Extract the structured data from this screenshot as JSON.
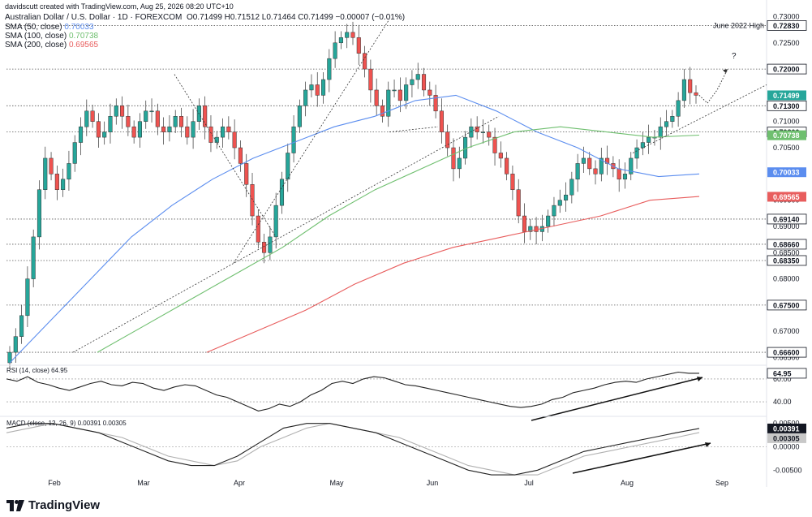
{
  "header": {
    "credit": "davidscutt created with TradingView.com, Aug 25, 2026 08:20 UTC+10",
    "symbol_line": "Australian Dollar / U.S. Dollar · 1D · FOREXCOM",
    "ohlc": "O0.71499 H0.71512 L0.71464 C0.71499 −0.00007 (−0.01%)",
    "sma_labels": [
      {
        "label": "SMA (50, close)",
        "value": "0.70033",
        "color": "#5b8def"
      },
      {
        "label": "SMA (100, close)",
        "value": "0.70738",
        "color": "#6fbf6f"
      },
      {
        "label": "SMA (200, close)",
        "value": "0.69565",
        "color": "#e85d5d"
      }
    ]
  },
  "watermark": "TradingView",
  "price_axis": {
    "ticks": [
      "0.73000",
      "0.72500",
      "0.72000",
      "0.71500",
      "0.71000",
      "0.70500",
      "0.70000",
      "0.69500",
      "0.69000",
      "0.68500",
      "0.68000",
      "0.67500",
      "0.67000",
      "0.66500"
    ],
    "levels": [
      {
        "value": "0.72830",
        "label": "June 2022 High"
      },
      {
        "value": "0.72000",
        "label": ""
      },
      {
        "value": "0.71300",
        "label": ""
      },
      {
        "value": "0.70800",
        "label": ""
      },
      {
        "value": "0.69140",
        "label": ""
      },
      {
        "value": "0.68660",
        "label": ""
      },
      {
        "value": "0.68350",
        "label": ""
      },
      {
        "value": "0.67500",
        "label": ""
      },
      {
        "value": "0.66600",
        "label": ""
      }
    ],
    "badges": [
      {
        "value": "0.71499",
        "color": "#26a69a"
      },
      {
        "value": "0.70738",
        "color": "#6fbf6f"
      },
      {
        "value": "0.70033",
        "color": "#5b8def"
      },
      {
        "value": "0.69565",
        "color": "#e85d5d"
      }
    ]
  },
  "x_axis": [
    "Feb",
    "Mar",
    "Apr",
    "May",
    "Jun",
    "Jul",
    "Aug",
    "Sep"
  ],
  "annotation_question": "?",
  "rsi": {
    "label": "RSI (14, close)",
    "value": "64.95",
    "ticks": [
      "60.00",
      "40.00"
    ]
  },
  "macd": {
    "label": "MACD (close, 12, 26, 9)",
    "values": [
      "0.00391",
      "0.00305"
    ],
    "ticks": [
      "0.00500",
      "0.00000",
      "-0.00500"
    ],
    "badges": [
      "0.00391",
      "0.00305"
    ]
  },
  "chart_data": {
    "type": "candlestick",
    "title": "Australian Dollar / U.S. Dollar · 1D · FOREXCOM",
    "ylim": [
      0.664,
      0.731
    ],
    "series": [
      {
        "name": "SMA (50, close)",
        "color": "#5b8def",
        "values": [
          0.664,
          0.672,
          0.68,
          0.688,
          0.694,
          0.699,
          0.703,
          0.706,
          0.709,
          0.711,
          0.714,
          0.715,
          0.712,
          0.708,
          0.705,
          0.701,
          0.6995,
          0.7
        ]
      },
      {
        "name": "SMA (100, close)",
        "color": "#6fbf6f",
        "values": [
          0.666,
          0.671,
          0.676,
          0.681,
          0.686,
          0.692,
          0.697,
          0.701,
          0.705,
          0.708,
          0.709,
          0.708,
          0.707,
          0.7074
        ]
      },
      {
        "name": "SMA (200, close)",
        "color": "#e85d5d",
        "values": [
          0.666,
          0.67,
          0.674,
          0.679,
          0.683,
          0.686,
          0.688,
          0.69,
          0.692,
          0.695,
          0.6957
        ]
      }
    ],
    "candles_close": [
      0.666,
      0.669,
      0.673,
      0.68,
      0.688,
      0.697,
      0.703,
      0.7,
      0.697,
      0.699,
      0.702,
      0.706,
      0.709,
      0.712,
      0.71,
      0.707,
      0.708,
      0.711,
      0.713,
      0.711,
      0.709,
      0.707,
      0.71,
      0.712,
      0.712,
      0.709,
      0.708,
      0.709,
      0.711,
      0.709,
      0.707,
      0.71,
      0.713,
      0.709,
      0.706,
      0.707,
      0.709,
      0.708,
      0.705,
      0.702,
      0.698,
      0.692,
      0.687,
      0.685,
      0.688,
      0.694,
      0.699,
      0.704,
      0.709,
      0.713,
      0.716,
      0.717,
      0.715,
      0.718,
      0.722,
      0.725,
      0.726,
      0.727,
      0.726,
      0.723,
      0.72,
      0.716,
      0.713,
      0.711,
      0.716,
      0.716,
      0.714,
      0.717,
      0.718,
      0.719,
      0.716,
      0.715,
      0.712,
      0.708,
      0.705,
      0.701,
      0.703,
      0.707,
      0.709,
      0.708,
      0.708,
      0.707,
      0.704,
      0.703,
      0.7,
      0.697,
      0.692,
      0.689,
      0.69,
      0.689,
      0.69,
      0.692,
      0.694,
      0.695,
      0.696,
      0.699,
      0.702,
      0.703,
      0.701,
      0.7,
      0.703,
      0.702,
      0.701,
      0.699,
      0.7,
      0.703,
      0.705,
      0.706,
      0.707,
      0.707,
      0.709,
      0.71,
      0.711,
      0.714,
      0.718,
      0.7155,
      0.715
    ],
    "rsi_values": [
      60,
      58,
      62,
      57,
      55,
      52,
      50,
      53,
      56,
      58,
      55,
      54,
      57,
      56,
      52,
      50,
      53,
      55,
      54,
      50,
      46,
      44,
      40,
      36,
      32,
      34,
      38,
      36,
      40,
      46,
      50,
      56,
      58,
      56,
      60,
      62,
      61,
      58,
      55,
      54,
      52,
      50,
      48,
      46,
      44,
      42,
      40,
      38,
      36,
      35,
      36,
      38,
      42,
      44,
      48,
      50,
      52,
      55,
      57,
      58,
      57,
      60,
      62,
      64,
      66,
      65,
      64.95
    ],
    "macd_values": [
      0.004,
      0.005,
      0.005,
      0.004,
      0.003,
      0.001,
      -0.001,
      -0.003,
      -0.004,
      -0.004,
      -0.002,
      0.001,
      0.004,
      0.005,
      0.005,
      0.004,
      0.003,
      0.001,
      -0.001,
      -0.003,
      -0.005,
      -0.006,
      -0.006,
      -0.005,
      -0.003,
      -0.001,
      0.0,
      0.001,
      0.002,
      0.003,
      0.00391
    ],
    "signal_values": [
      0.003,
      0.004,
      0.005,
      0.004,
      0.003,
      0.002,
      0.0,
      -0.002,
      -0.003,
      -0.004,
      -0.003,
      0.0,
      0.002,
      0.004,
      0.005,
      0.004,
      0.003,
      0.002,
      0.0,
      -0.002,
      -0.004,
      -0.005,
      -0.006,
      -0.006,
      -0.004,
      -0.002,
      -0.001,
      0.0,
      0.001,
      0.002,
      0.00305
    ]
  }
}
